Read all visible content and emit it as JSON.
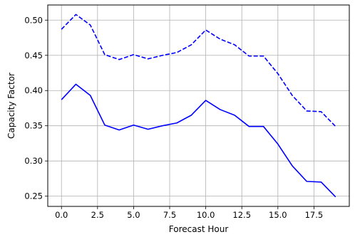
{
  "chart_data": {
    "type": "line",
    "xlabel": "Forecast Hour",
    "ylabel": "Capacity Factor",
    "xlim": [
      -0.95,
      19.95
    ],
    "ylim": [
      0.2355,
      0.5215
    ],
    "xticks": [
      0.0,
      2.5,
      5.0,
      7.5,
      10.0,
      12.5,
      15.0,
      17.5
    ],
    "xtick_labels": [
      "0.0",
      "2.5",
      "5.0",
      "7.5",
      "10.0",
      "12.5",
      "15.0",
      "17.5"
    ],
    "yticks": [
      0.25,
      0.3,
      0.35,
      0.4,
      0.45,
      0.5
    ],
    "ytick_labels": [
      "0.25",
      "0.30",
      "0.35",
      "0.40",
      "0.45",
      "0.50"
    ],
    "grid": true,
    "x": [
      0,
      1,
      2,
      3,
      4,
      5,
      6,
      7,
      8,
      9,
      10,
      11,
      12,
      13,
      14,
      15,
      16,
      17,
      18,
      19
    ],
    "series": [
      {
        "style": "dashed",
        "color": "#0000ff",
        "values": [
          0.487,
          0.508,
          0.493,
          0.451,
          0.444,
          0.451,
          0.445,
          0.45,
          0.454,
          0.465,
          0.486,
          0.473,
          0.465,
          0.449,
          0.449,
          0.424,
          0.393,
          0.371,
          0.37,
          0.349
        ]
      },
      {
        "style": "solid",
        "color": "#0000ff",
        "values": [
          0.387,
          0.409,
          0.393,
          0.351,
          0.344,
          0.351,
          0.345,
          0.35,
          0.354,
          0.365,
          0.386,
          0.373,
          0.365,
          0.349,
          0.349,
          0.324,
          0.293,
          0.271,
          0.27,
          0.249
        ]
      }
    ]
  }
}
